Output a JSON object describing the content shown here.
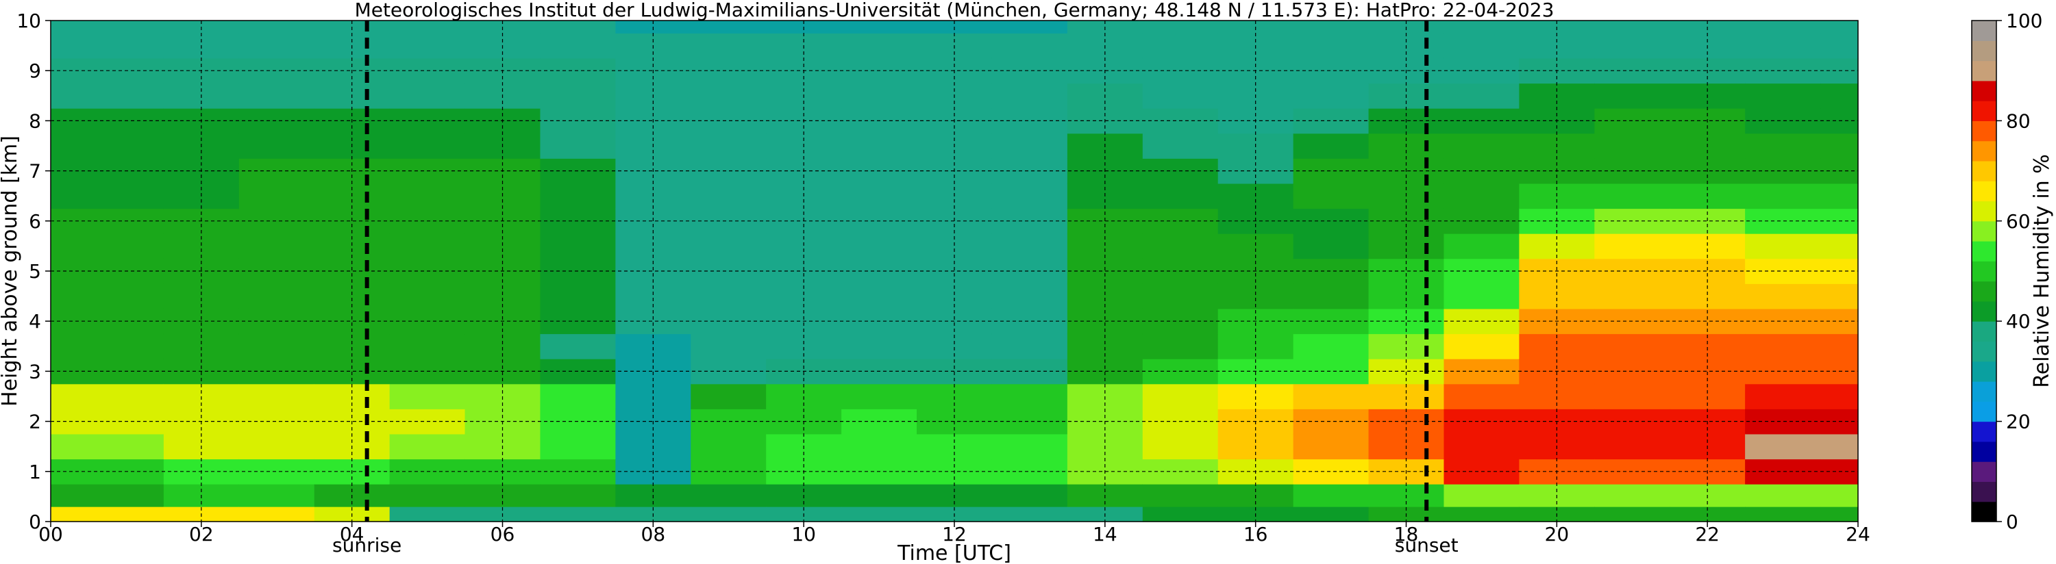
{
  "chart_data": {
    "type": "heatmap",
    "title": "Meteorologisches Institut der Ludwig-Maximilians-Universität (München, Germany; 48.148 N / 11.573 E):    HatPro: 22-04-2023",
    "xlabel": "Time [UTC]",
    "ylabel": "Height above ground [km]",
    "xlim": [
      0,
      24
    ],
    "ylim": [
      0,
      10
    ],
    "x_ticks": [
      "00",
      "02",
      "04",
      "06",
      "08",
      "10",
      "12",
      "14",
      "16",
      "18",
      "20",
      "22",
      "24"
    ],
    "y_ticks": [
      "0",
      "1",
      "2",
      "3",
      "4",
      "5",
      "6",
      "7",
      "8",
      "9",
      "10"
    ],
    "grid": true,
    "colorbar": {
      "label": "Relative Humidity in %",
      "range": [
        0,
        100
      ],
      "ticks": [
        "0",
        "20",
        "40",
        "60",
        "80",
        "100"
      ]
    },
    "markers": [
      {
        "name": "sunrise",
        "x": 4.2
      },
      {
        "name": "sunset",
        "x": 18.27
      }
    ],
    "x": [
      0,
      1,
      2,
      3,
      4,
      5,
      6,
      7,
      8,
      9,
      10,
      11,
      12,
      13,
      14,
      15,
      16,
      17,
      18,
      19,
      20,
      21,
      22,
      23,
      24
    ],
    "y": [
      0.1,
      0.5,
      1,
      1.5,
      2,
      2.5,
      3,
      3.5,
      4,
      4.5,
      5,
      5.5,
      6,
      6.5,
      7,
      7.5,
      8,
      8.5,
      9,
      9.5,
      10
    ],
    "values": [
      [
        64,
        47,
        50,
        58,
        60,
        60,
        45,
        44,
        44,
        44,
        44,
        44,
        44,
        43,
        43,
        43,
        40,
        38,
        37,
        35,
        33
      ],
      [
        64,
        47,
        51,
        59,
        61,
        60,
        45,
        44,
        44,
        44,
        44,
        44,
        44,
        43,
        43,
        42,
        40,
        38,
        37,
        35,
        33
      ],
      [
        64,
        48,
        52,
        60,
        62,
        61,
        46,
        44,
        44,
        44,
        44,
        44,
        44,
        43,
        43,
        42,
        40,
        38,
        37,
        35,
        33
      ],
      [
        64,
        48,
        52,
        60,
        62,
        61,
        46,
        45,
        45,
        45,
        45,
        45,
        45,
        44,
        44,
        43,
        40,
        38,
        37,
        35,
        33
      ],
      [
        62,
        47,
        52,
        60,
        61,
        60,
        46,
        45,
        45,
        45,
        45,
        45,
        45,
        44,
        44,
        43,
        41,
        38,
        37,
        35,
        33
      ],
      [
        38,
        46,
        51,
        59,
        60,
        58,
        45,
        45,
        46,
        46,
        46,
        46,
        45,
        45,
        44,
        43,
        41,
        39,
        37,
        35,
        33
      ],
      [
        36,
        44,
        50,
        57,
        58,
        56,
        44,
        44,
        45,
        45,
        46,
        46,
        45,
        45,
        44,
        43,
        41,
        39,
        37,
        35,
        33
      ],
      [
        36,
        44,
        48,
        55,
        55,
        52,
        40,
        39,
        40,
        41,
        42,
        42,
        42,
        42,
        40,
        39,
        38,
        37,
        36,
        34,
        32
      ],
      [
        36,
        42,
        30,
        28,
        28,
        28,
        29,
        31,
        33,
        34,
        35,
        35,
        35,
        35,
        35,
        35,
        34,
        34,
        33,
        32,
        31
      ],
      [
        36,
        40,
        50,
        49,
        48,
        45,
        35,
        35,
        35,
        35,
        35,
        35,
        35,
        35,
        35,
        35,
        34,
        34,
        33,
        32,
        31
      ],
      [
        36,
        42,
        52,
        52,
        51,
        50,
        36,
        35,
        35,
        35,
        35,
        35,
        35,
        35,
        35,
        35,
        34,
        34,
        33,
        32,
        31
      ],
      [
        36,
        42,
        52,
        53,
        52,
        51,
        37,
        35,
        35,
        35,
        35,
        35,
        35,
        35,
        35,
        35,
        34,
        34,
        33,
        32,
        31
      ],
      [
        36,
        42,
        52,
        52,
        51,
        50,
        36,
        35,
        35,
        35,
        35,
        35,
        35,
        35,
        35,
        35,
        34,
        34,
        33,
        32,
        30
      ],
      [
        36,
        42,
        52,
        52,
        51,
        50,
        36,
        35,
        35,
        35,
        35,
        35,
        35,
        35,
        35,
        35,
        34,
        34,
        33,
        32,
        31
      ],
      [
        38,
        44,
        56,
        58,
        58,
        56,
        46,
        46,
        45,
        45,
        45,
        45,
        44,
        43,
        42,
        40,
        38,
        36,
        35,
        34,
        33
      ],
      [
        40,
        45,
        58,
        62,
        62,
        60,
        48,
        47,
        46,
        46,
        46,
        45,
        44,
        42,
        40,
        38,
        36,
        35,
        35,
        34,
        33
      ],
      [
        42,
        47,
        62,
        70,
        70,
        66,
        52,
        50,
        48,
        47,
        46,
        44,
        42,
        40,
        38,
        36,
        35,
        35,
        35,
        34,
        33
      ],
      [
        43,
        48,
        66,
        74,
        74,
        68,
        55,
        52,
        49,
        47,
        45,
        43,
        42,
        44,
        44,
        40,
        36,
        35,
        35,
        34,
        33
      ],
      [
        44,
        50,
        70,
        77,
        76,
        70,
        60,
        56,
        52,
        50,
        48,
        46,
        46,
        47,
        47,
        45,
        40,
        36,
        35,
        34,
        33
      ],
      [
        44,
        56,
        80,
        82,
        80,
        76,
        72,
        66,
        60,
        55,
        52,
        48,
        44,
        46,
        46,
        44,
        40,
        36,
        35,
        34,
        33
      ],
      [
        44,
        58,
        76,
        80,
        80,
        78,
        77,
        76,
        72,
        70,
        68,
        62,
        55,
        48,
        46,
        45,
        43,
        40,
        36,
        34,
        33
      ],
      [
        44,
        58,
        76,
        80,
        80,
        78,
        77,
        76,
        73,
        71,
        69,
        64,
        56,
        48,
        46,
        45,
        44,
        41,
        37,
        34,
        33
      ],
      [
        44,
        58,
        76,
        80,
        80,
        78,
        77,
        76,
        73,
        71,
        69,
        64,
        56,
        48,
        46,
        45,
        44,
        41,
        37,
        34,
        33
      ],
      [
        44,
        58,
        86,
        88,
        86,
        82,
        78,
        76,
        72,
        70,
        66,
        62,
        54,
        48,
        46,
        45,
        43,
        40,
        37,
        34,
        33
      ],
      [
        44,
        58,
        86,
        88,
        86,
        82,
        78,
        76,
        72,
        70,
        66,
        62,
        54,
        48,
        46,
        45,
        43,
        40,
        37,
        34,
        33
      ]
    ]
  },
  "colors": {
    "colormap": [
      "#000000",
      "#3a1150",
      "#5a1a7c",
      "#0000a0",
      "#1414d0",
      "#0a9ee6",
      "#0aa0d8",
      "#0aa0a0",
      "#1aa88a",
      "#1aa880",
      "#0c9c28",
      "#1aa81a",
      "#22c822",
      "#2ee82e",
      "#88f020",
      "#d8f000",
      "#ffe600",
      "#ffc800",
      "#ff9600",
      "#ff5a00",
      "#f01400",
      "#d40000",
      "#c8a078",
      "#b49c80",
      "#a09a96"
    ]
  }
}
